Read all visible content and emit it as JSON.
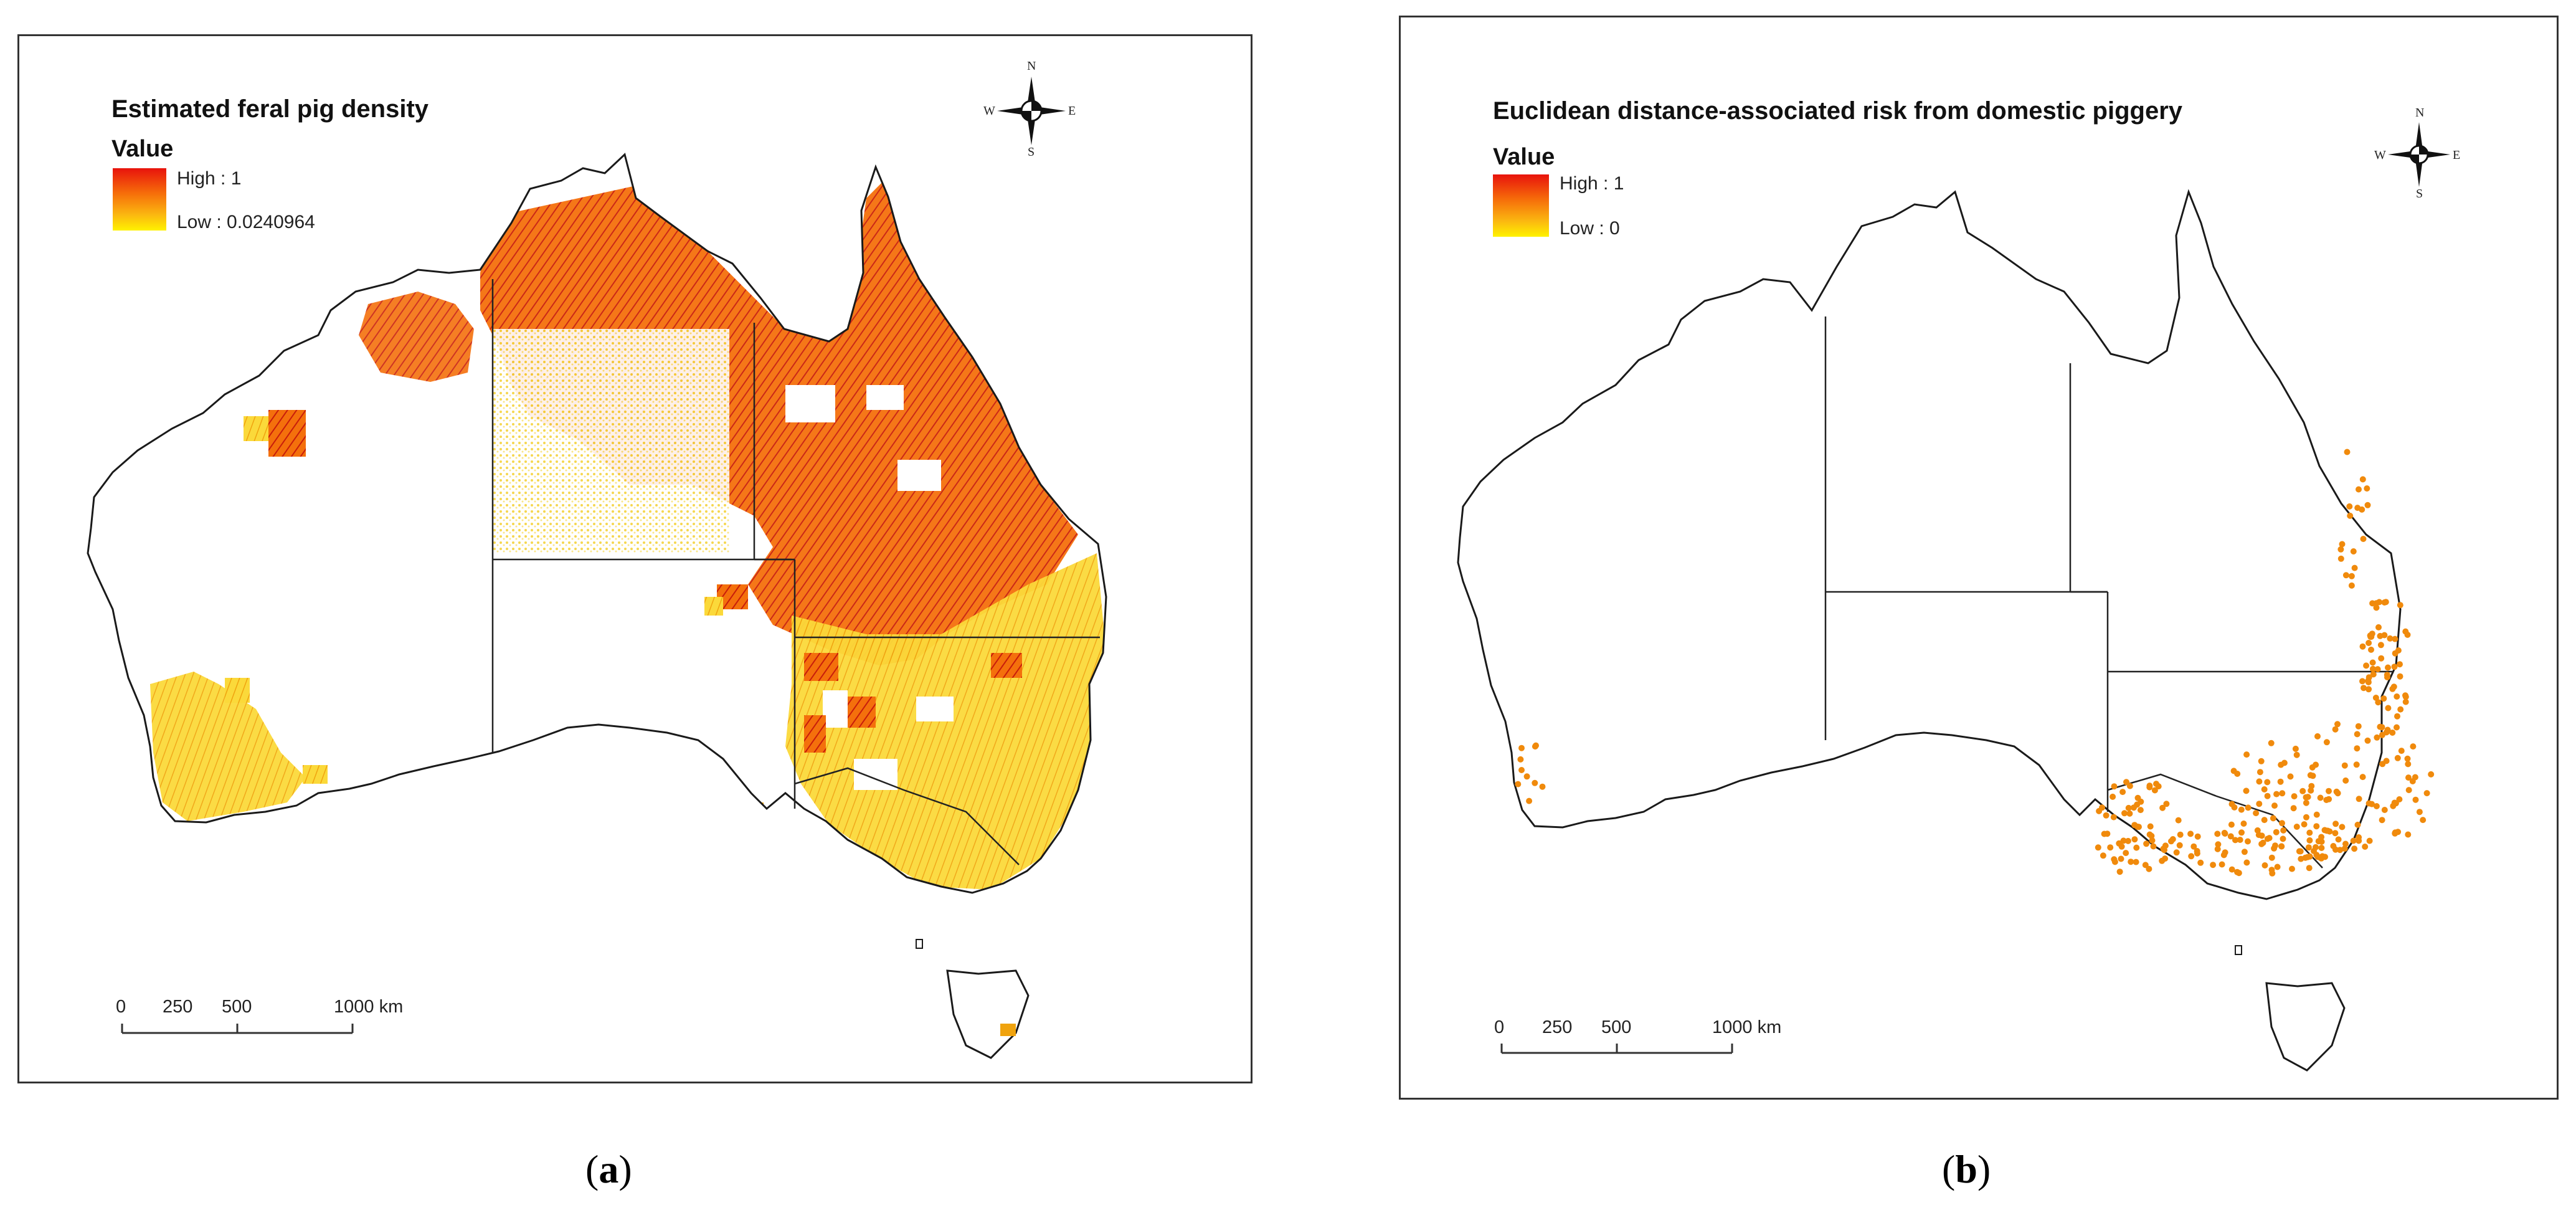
{
  "panels": [
    {
      "title": "Estimated feral pig density",
      "legend": {
        "heading": "Value",
        "high": "High : 1",
        "low": "Low : 0.0240964"
      },
      "scale": {
        "labels": [
          "0",
          "250",
          "500",
          "1000 km"
        ]
      },
      "compass": {
        "n": "N",
        "s": "S",
        "e": "E",
        "w": "W"
      },
      "caption_letter": "a"
    },
    {
      "title": "Euclidean distance-associated risk from domestic piggery",
      "legend": {
        "heading": "Value",
        "high": "High : 1",
        "low": "Low : 0"
      },
      "scale": {
        "labels": [
          "0",
          "250",
          "500",
          "1000 km"
        ]
      },
      "compass": {
        "n": "N",
        "s": "S",
        "e": "E",
        "w": "W"
      },
      "caption_letter": "b"
    }
  ],
  "colors": {
    "high": "#e8130c",
    "mid": "#f66d0a",
    "low": "#fff200",
    "outline": "#1a1a1a"
  }
}
